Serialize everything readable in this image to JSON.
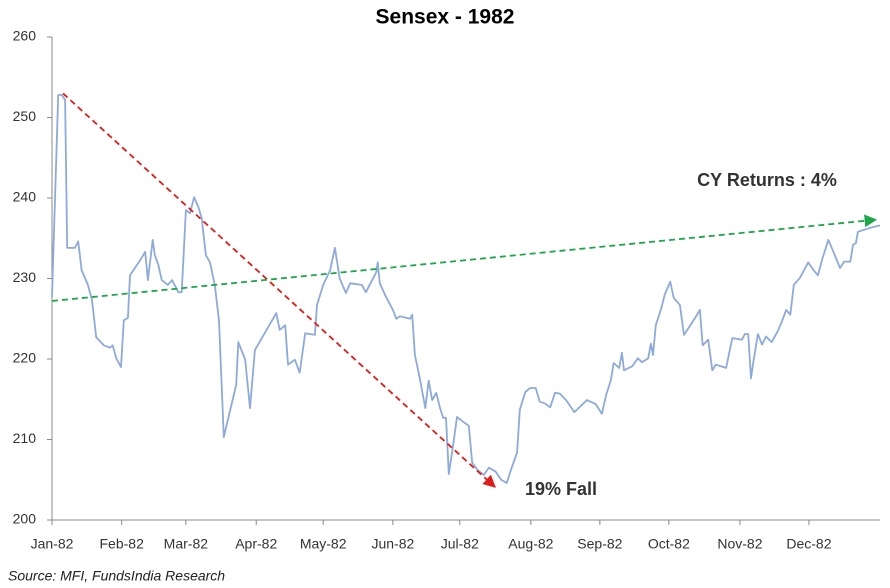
{
  "chart_data": {
    "type": "line",
    "title": "Sensex - 1982",
    "source": "Source: MFI, FundsIndia Research",
    "annotations": [
      {
        "text": "CY Returns : 4%",
        "color": "#1fa64a"
      },
      {
        "text": "19% Fall",
        "color": "#e01b1b"
      }
    ],
    "xlim": [
      0,
      12
    ],
    "xticks": [
      {
        "value": 0,
        "label": "Jan-82"
      },
      {
        "value": 1.01,
        "label": "Feb-82"
      },
      {
        "value": 1.94,
        "label": "Mar-82"
      },
      {
        "value": 2.96,
        "label": "Apr-82"
      },
      {
        "value": 3.93,
        "label": "May-82"
      },
      {
        "value": 4.94,
        "label": "Jun-82"
      },
      {
        "value": 5.91,
        "label": "Jul-82"
      },
      {
        "value": 6.94,
        "label": "Aug-82"
      },
      {
        "value": 7.94,
        "label": "Sep-82"
      },
      {
        "value": 8.94,
        "label": "Oct-82"
      },
      {
        "value": 9.97,
        "label": "Nov-82"
      },
      {
        "value": 10.97,
        "label": "Dec-82"
      }
    ],
    "ylim": [
      200,
      260
    ],
    "yticks": [
      200,
      210,
      220,
      230,
      240,
      250,
      260
    ],
    "grid": false,
    "series": [
      {
        "color": "#8eaad8",
        "x": [
          0,
          0.09,
          0.14,
          0.19,
          0.22,
          0.33,
          0.38,
          0.43,
          0.52,
          0.58,
          0.64,
          0.75,
          0.84,
          0.88,
          0.93,
          1.0,
          1.04,
          1.1,
          1.13,
          1.28,
          1.35,
          1.39,
          1.46,
          1.49,
          1.54,
          1.59,
          1.68,
          1.74,
          1.83,
          1.88,
          1.94,
          2.0,
          2.06,
          2.12,
          2.17,
          2.23,
          2.29,
          2.36,
          2.42,
          2.49,
          2.67,
          2.7,
          2.8,
          2.87,
          2.94,
          3.25,
          3.3,
          3.38,
          3.42,
          3.52,
          3.59,
          3.67,
          3.81,
          3.84,
          3.93,
          4.03,
          4.1,
          4.17,
          4.26,
          4.32,
          4.49,
          4.55,
          4.7,
          4.72,
          4.75,
          4.83,
          4.94,
          4.99,
          5.04,
          5.19,
          5.22,
          5.26,
          5.33,
          5.41,
          5.46,
          5.51,
          5.57,
          5.62,
          5.67,
          5.71,
          5.75,
          5.81,
          5.87,
          5.96,
          6.04,
          6.09,
          6.17,
          6.26,
          6.33,
          6.43,
          6.51,
          6.59,
          6.65,
          6.74,
          6.78,
          6.86,
          6.93,
          7.01,
          7.07,
          7.14,
          7.22,
          7.29,
          7.36,
          7.45,
          7.57,
          7.68,
          7.75,
          7.88,
          7.97,
          8.03,
          8.1,
          8.14,
          8.22,
          8.26,
          8.29,
          8.41,
          8.49,
          8.55,
          8.64,
          8.68,
          8.71,
          8.75,
          8.83,
          8.88,
          8.96,
          9.01,
          9.1,
          9.16,
          9.25,
          9.32,
          9.39,
          9.43,
          9.51,
          9.57,
          9.62,
          9.77,
          9.86,
          10.0,
          10.04,
          10.09,
          10.13,
          10.17,
          10.23,
          10.29,
          10.35,
          10.43,
          10.52,
          10.58,
          10.64,
          10.7,
          10.75,
          10.84,
          10.96,
          11.04,
          11.1,
          11.16,
          11.25,
          11.33,
          11.42,
          11.48,
          11.57,
          11.61,
          11.65,
          11.68,
          11.75,
          11.86,
          12.0
        ],
        "values": [
          227.7,
          252.8,
          252.8,
          252.2,
          233.8,
          233.8,
          234.6,
          231,
          229.2,
          227.3,
          222.7,
          221.7,
          221.4,
          221.7,
          220.1,
          219,
          224.8,
          225.1,
          230.4,
          232.3,
          233.3,
          229.8,
          234.8,
          232.9,
          231.7,
          229.8,
          229.2,
          229.8,
          228.3,
          228.3,
          238.5,
          238.1,
          240.1,
          238.9,
          237.5,
          232.9,
          232,
          229.2,
          224.8,
          210.3,
          216.8,
          222.1,
          219.9,
          213.9,
          221.1,
          225.7,
          223.6,
          224.2,
          219.3,
          219.9,
          218.3,
          223.2,
          223,
          226.7,
          229.2,
          231,
          233.8,
          230,
          228.2,
          229.4,
          229.2,
          228.3,
          230.8,
          232,
          229.4,
          227.9,
          226.1,
          225,
          225.3,
          225,
          225.5,
          220.5,
          217.6,
          213.9,
          217.3,
          214.9,
          215.8,
          214,
          212.7,
          212.7,
          205.7,
          209.1,
          212.8,
          212.2,
          211.7,
          207.1,
          206.2,
          205.6,
          206.5,
          206,
          205,
          204.6,
          206.2,
          208.4,
          213.7,
          215.9,
          216.4,
          216.4,
          214.7,
          214.5,
          214,
          215.8,
          215.7,
          214.9,
          213.4,
          214.3,
          214.9,
          214.4,
          213.2,
          215.5,
          217.4,
          219.5,
          218.9,
          220.8,
          218.6,
          219.1,
          220.1,
          219.6,
          220.1,
          221.9,
          220.5,
          224.2,
          226.3,
          228,
          229.6,
          227.6,
          226.7,
          223,
          224.2,
          225.1,
          226.1,
          221.7,
          222.4,
          218.6,
          219.3,
          218.9,
          222.6,
          222.4,
          223.1,
          223.1,
          217.6,
          219.9,
          223.1,
          221.8,
          222.8,
          222.1,
          223.5,
          224.7,
          226.1,
          225.5,
          229.2,
          230.1,
          232,
          231,
          230.4,
          232.3,
          234.8,
          233.2,
          231.3,
          232.1,
          232.1,
          234.2,
          234.4,
          235.8,
          236,
          236.3,
          236.6
        ]
      }
    ],
    "trend_lines": [
      {
        "color": "#e01b1b",
        "x": [
          0.16,
          6.42
        ],
        "values": [
          253,
          204.1
        ]
      },
      {
        "color": "#1fa64a",
        "x": [
          0,
          11.94
        ],
        "values": [
          227.2,
          237.3
        ]
      }
    ]
  }
}
